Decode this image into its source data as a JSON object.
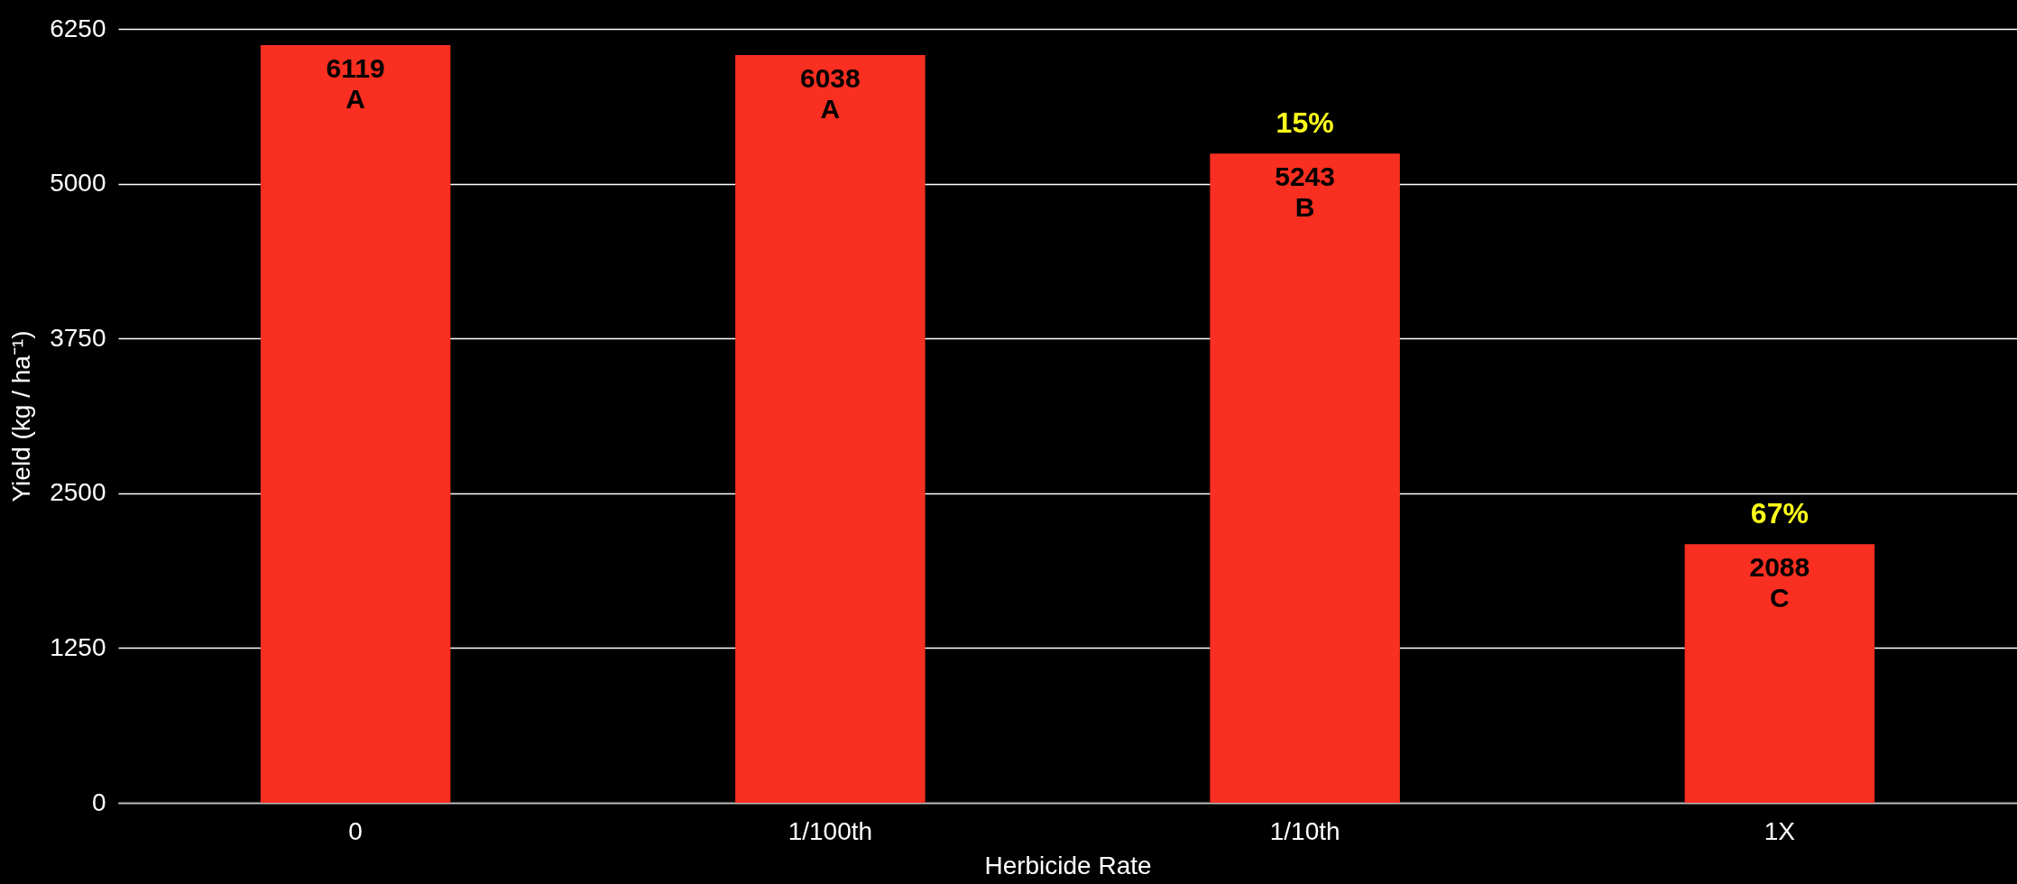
{
  "chart_data": {
    "type": "bar",
    "xlabel": "Herbicide Rate",
    "ylabel": "Yield (kg / ha⁻¹)",
    "categories": [
      "0",
      "1/100th",
      "1/10th",
      "1X"
    ],
    "values": [
      6119,
      6038,
      5243,
      2088
    ],
    "color": "#f82f21",
    "value_labels": [
      "6119\nA",
      "6038\nA",
      "5243\nB",
      "2088\nC"
    ],
    "annotations": [
      {
        "text": "15%",
        "x": "1/10th",
        "y": 5243
      },
      {
        "text": "67%",
        "x": "1X",
        "y": 2088
      }
    ],
    "ylim": [
      0,
      6250
    ],
    "yticks": [
      0,
      1250,
      2500,
      3750,
      5000,
      6250
    ],
    "grid": "y"
  }
}
